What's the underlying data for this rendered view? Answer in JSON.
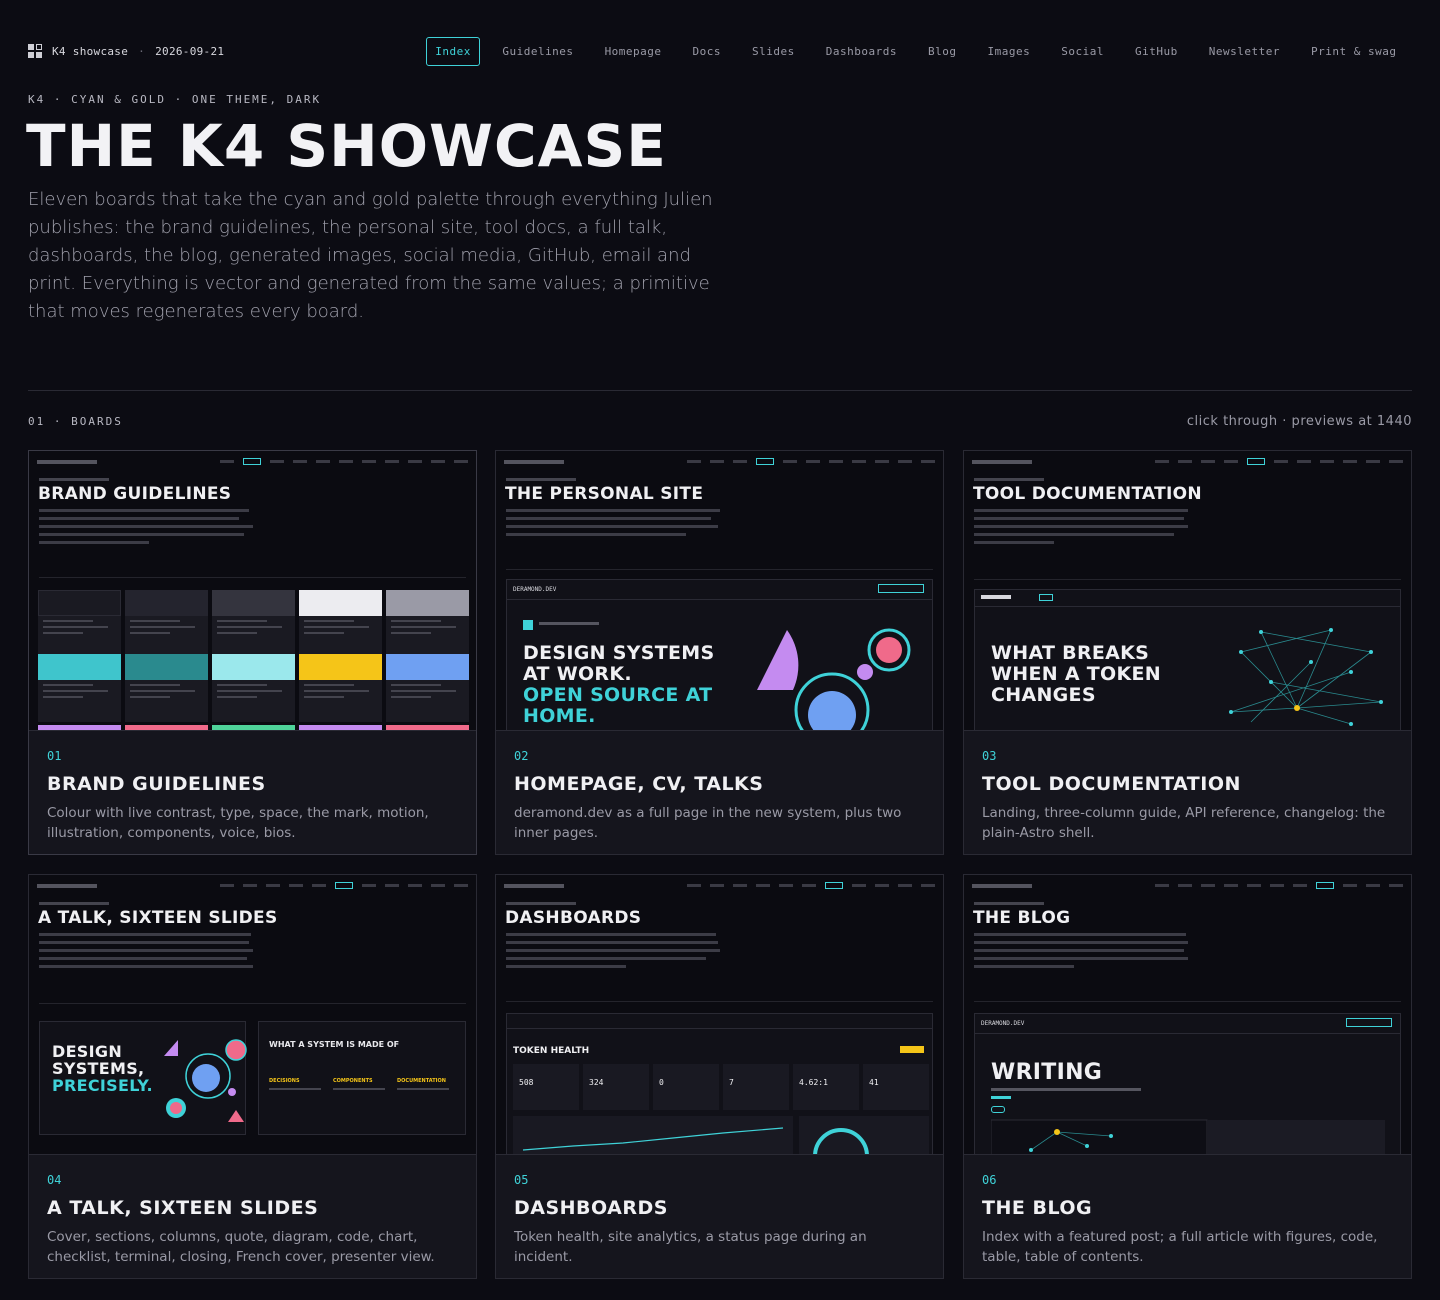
{
  "brand": {
    "name": "K4 showcase",
    "sep": "·",
    "date": "2026-09-21"
  },
  "nav": [
    "Index",
    "Guidelines",
    "Homepage",
    "Docs",
    "Slides",
    "Dashboards",
    "Blog",
    "Images",
    "Social",
    "GitHub",
    "Newsletter",
    "Print & swag"
  ],
  "hero": {
    "eyebrow": "K4 · CYAN & GOLD · ONE THEME, DARK",
    "title": "THE K4 SHOWCASE",
    "lede": "Eleven boards that take the cyan and gold palette through everything Julien publishes: the brand guidelines, the personal site, tool docs, a full talk, dashboards, the blog, generated images, social media, GitHub, email and print. Everything is vector and generated from the same values; a primitive that moves regenerates every board."
  },
  "section": {
    "label": "01 · BOARDS",
    "note": "click through · previews at 1440"
  },
  "colors": {
    "accent": "#3fd2d8",
    "gold": "#f5c518",
    "bg": "#0c0c13",
    "card": "#15151d",
    "violet": "#c48bf0",
    "pink": "#f06a8a",
    "blue": "#6fa0f2",
    "green": "#4fd39a"
  },
  "cards": [
    {
      "num": "01",
      "title": "BRAND GUIDELINES",
      "desc": "Colour with live contrast, type, space, the mark, motion, illustration, components, voice, bios.",
      "preview": {
        "title": "BRAND GUIDELINES"
      }
    },
    {
      "num": "02",
      "title": "HOMEPAGE, CV, TALKS",
      "desc": "deramond.dev as a full page in the new system, plus two inner pages.",
      "preview": {
        "title": "THE PERSONAL SITE",
        "site": "DERAMOND.DEV",
        "line1": "DESIGN SYSTEMS",
        "line2": "AT WORK.",
        "line3": "OPEN SOURCE AT",
        "line4": "HOME."
      }
    },
    {
      "num": "03",
      "title": "TOOL DOCUMENTATION",
      "desc": "Landing, three-column guide, API reference, changelog: the plain-Astro shell.",
      "preview": {
        "title": "TOOL DOCUMENTATION",
        "l1": "WHAT BREAKS",
        "l2": "WHEN A TOKEN",
        "l3": "CHANGES"
      }
    },
    {
      "num": "04",
      "title": "A TALK, SIXTEEN SLIDES",
      "desc": "Cover, sections, columns, quote, diagram, code, chart, checklist, terminal, closing, French cover, presenter view.",
      "preview": {
        "title": "A TALK, SIXTEEN SLIDES",
        "s1": "DESIGN",
        "s2": "SYSTEMS,",
        "s3": "PRECISELY.",
        "slide2": "WHAT A SYSTEM IS MADE OF",
        "cols": [
          "DECISIONS",
          "COMPONENTS",
          "DOCUMENTATION"
        ]
      }
    },
    {
      "num": "05",
      "title": "DASHBOARDS",
      "desc": "Token health, site analytics, a status page during an incident.",
      "preview": {
        "title": "DASHBOARDS",
        "panel": "TOKEN HEALTH",
        "stats": [
          "508",
          "324",
          "0",
          "7",
          "4.62:1",
          "41"
        ]
      }
    },
    {
      "num": "06",
      "title": "THE BLOG",
      "desc": "Index with a featured post; a full article with figures, code, table, table of contents.",
      "preview": {
        "title": "THE BLOG",
        "site": "DERAMOND.DEV",
        "heading": "WRITING"
      }
    }
  ]
}
